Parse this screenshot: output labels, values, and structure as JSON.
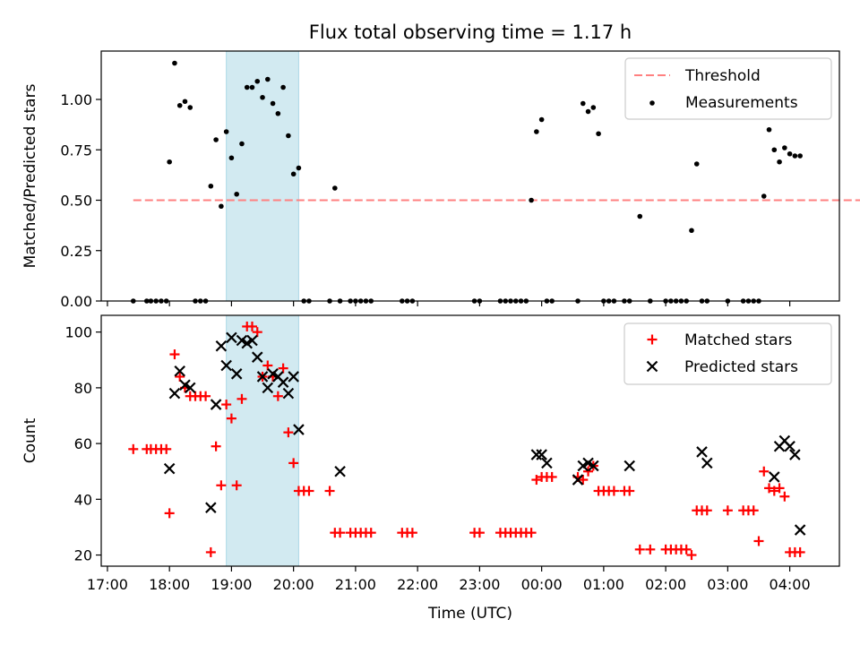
{
  "title": "Flux total observing time = 1.17 h",
  "colors": {
    "threshold": "#ff8080",
    "measurement": "#000000",
    "matched": "#ff0000",
    "predicted": "#000000",
    "span": "#add8e6"
  },
  "chart_data": [
    {
      "type": "scatter",
      "ylabel": "Matched/Predicted stars",
      "ylim": [
        0,
        1.24
      ],
      "yticks": [
        0.0,
        0.25,
        0.5,
        0.75,
        1.0
      ],
      "ytick_labels": [
        "0.00",
        "0.25",
        "0.50",
        "0.75",
        "1.00"
      ],
      "highlight_span": [
        "18:55",
        "20:05"
      ],
      "legend": {
        "position": "top-right",
        "entries": [
          "Threshold",
          "Measurements"
        ]
      },
      "threshold": {
        "name": "Threshold",
        "value": 0.5,
        "x_range": [
          "17:25",
          "23:35(+1d)"
        ]
      },
      "series": [
        {
          "name": "Measurements",
          "x": [
            "17:25",
            "17:38",
            "17:42",
            "17:47",
            "17:52",
            "17:57",
            "18:00",
            "18:05",
            "18:10",
            "18:15",
            "18:20",
            "18:25",
            "18:30",
            "18:35",
            "18:40",
            "18:45",
            "18:50",
            "18:55",
            "19:00",
            "19:05",
            "19:10",
            "19:15",
            "19:20",
            "19:25",
            "19:30",
            "19:35",
            "19:40",
            "19:45",
            "19:50",
            "19:55",
            "20:00",
            "20:05",
            "20:10",
            "20:15",
            "20:35",
            "20:40",
            "20:45",
            "20:55",
            "21:00",
            "21:05",
            "21:10",
            "21:15",
            "21:45",
            "21:50",
            "21:55",
            "22:55",
            "23:00",
            "23:20",
            "23:25",
            "23:30",
            "23:35",
            "23:40",
            "23:45",
            "23:50",
            "23:55",
            "00:00",
            "00:05",
            "00:10",
            "00:35",
            "00:40",
            "00:45",
            "00:50",
            "00:55",
            "01:00",
            "01:05",
            "01:10",
            "01:20",
            "01:25",
            "01:35",
            "01:45",
            "02:00",
            "02:05",
            "02:10",
            "02:15",
            "02:20",
            "02:25",
            "02:30",
            "02:35",
            "02:40",
            "03:00",
            "03:15",
            "03:20",
            "03:25",
            "03:30",
            "03:35",
            "03:40",
            "03:45",
            "03:50",
            "03:55",
            "04:00",
            "04:05",
            "04:10"
          ],
          "y": [
            0,
            0,
            0,
            0,
            0,
            0,
            0.69,
            1.18,
            0.97,
            0.99,
            0.96,
            0,
            0,
            0,
            0.57,
            0.8,
            0.47,
            0.84,
            0.71,
            0.53,
            0.78,
            1.06,
            1.06,
            1.09,
            1.01,
            1.1,
            0.98,
            0.93,
            1.06,
            0.82,
            0.63,
            0.66,
            0,
            0,
            0,
            0.56,
            0,
            0,
            0,
            0,
            0,
            0,
            0,
            0,
            0,
            0,
            0,
            0,
            0,
            0,
            0,
            0,
            0,
            0.5,
            0.84,
            0.9,
            0,
            0,
            0,
            0.98,
            0.94,
            0.96,
            0.83,
            0,
            0,
            0,
            0,
            0,
            0.42,
            0,
            0,
            0,
            0,
            0,
            0,
            0.35,
            0.68,
            0,
            0,
            0,
            0,
            0,
            0,
            0,
            0.52,
            0.85,
            0.75,
            0.69,
            0.76,
            0.73,
            0.72,
            0.72
          ]
        }
      ]
    },
    {
      "type": "scatter",
      "xlabel": "Time (UTC)",
      "ylabel": "Count",
      "ylim": [
        16,
        106
      ],
      "yticks": [
        20,
        40,
        60,
        80,
        100
      ],
      "ytick_labels": [
        "20",
        "40",
        "60",
        "80",
        "100"
      ],
      "xtick_labels": [
        "17:00",
        "18:00",
        "19:00",
        "20:00",
        "21:00",
        "22:00",
        "23:00",
        "00:00",
        "01:00",
        "02:00",
        "03:00",
        "04:00"
      ],
      "highlight_span": [
        "18:55",
        "20:05"
      ],
      "legend": {
        "position": "top-right",
        "entries": [
          "Matched stars",
          "Predicted stars"
        ]
      },
      "series": [
        {
          "name": "Matched stars",
          "marker": "plus",
          "x": [
            "17:25",
            "17:38",
            "17:42",
            "17:47",
            "17:52",
            "17:57",
            "18:00",
            "18:05",
            "18:10",
            "18:15",
            "18:20",
            "18:25",
            "18:30",
            "18:35",
            "18:40",
            "18:45",
            "18:50",
            "18:55",
            "19:00",
            "19:05",
            "19:10",
            "19:15",
            "19:20",
            "19:25",
            "19:30",
            "19:35",
            "19:40",
            "19:45",
            "19:50",
            "19:55",
            "20:00",
            "20:05",
            "20:10",
            "20:15",
            "20:35",
            "20:40",
            "20:45",
            "20:55",
            "21:00",
            "21:05",
            "21:10",
            "21:15",
            "21:45",
            "21:50",
            "21:55",
            "22:55",
            "23:00",
            "23:20",
            "23:25",
            "23:30",
            "23:35",
            "23:40",
            "23:45",
            "23:50",
            "23:55",
            "00:00",
            "00:05",
            "00:10",
            "00:35",
            "00:40",
            "00:45",
            "00:50",
            "00:55",
            "01:00",
            "01:05",
            "01:10",
            "01:20",
            "01:25",
            "01:35",
            "01:45",
            "02:00",
            "02:05",
            "02:10",
            "02:15",
            "02:20",
            "02:25",
            "02:30",
            "02:35",
            "02:40",
            "03:00",
            "03:15",
            "03:20",
            "03:25",
            "03:30",
            "03:35",
            "03:40",
            "03:45",
            "03:50",
            "03:55",
            "04:00",
            "04:05",
            "04:10"
          ],
          "y": [
            58,
            58,
            58,
            58,
            58,
            58,
            35,
            92,
            84,
            80,
            77,
            77,
            77,
            77,
            21,
            59,
            45,
            74,
            69,
            45,
            76,
            102,
            102,
            100,
            84,
            88,
            84,
            77,
            87,
            64,
            53,
            43,
            43,
            43,
            43,
            28,
            28,
            28,
            28,
            28,
            28,
            28,
            28,
            28,
            28,
            28,
            28,
            28,
            28,
            28,
            28,
            28,
            28,
            28,
            47,
            48,
            48,
            48,
            48,
            47,
            50,
            52,
            43,
            43,
            43,
            43,
            43,
            43,
            22,
            22,
            22,
            22,
            22,
            22,
            22,
            20,
            36,
            36,
            36,
            36,
            36,
            36,
            36,
            25,
            50,
            44,
            43,
            44,
            41,
            21,
            21,
            21
          ]
        },
        {
          "name": "Predicted stars",
          "marker": "x",
          "x": [
            "18:00",
            "18:05",
            "18:10",
            "18:15",
            "18:20",
            "18:40",
            "18:45",
            "18:50",
            "18:55",
            "19:00",
            "19:05",
            "19:10",
            "19:15",
            "19:20",
            "19:25",
            "19:30",
            "19:35",
            "19:40",
            "19:45",
            "19:50",
            "19:55",
            "20:00",
            "20:05",
            "20:45",
            "23:55",
            "00:00",
            "00:05",
            "00:35",
            "00:40",
            "00:45",
            "00:50",
            "01:25",
            "02:35",
            "02:40",
            "03:45",
            "03:50",
            "03:55",
            "04:00",
            "04:05",
            "04:10"
          ],
          "y": [
            51,
            78,
            86,
            81,
            80,
            37,
            74,
            95,
            88,
            98,
            85,
            97,
            96,
            97,
            91,
            84,
            80,
            85,
            84,
            82,
            78,
            84,
            65,
            50,
            56,
            56,
            53,
            47,
            52,
            53,
            52,
            52,
            57,
            53,
            48,
            59,
            61,
            59,
            56,
            29
          ]
        }
      ]
    }
  ]
}
